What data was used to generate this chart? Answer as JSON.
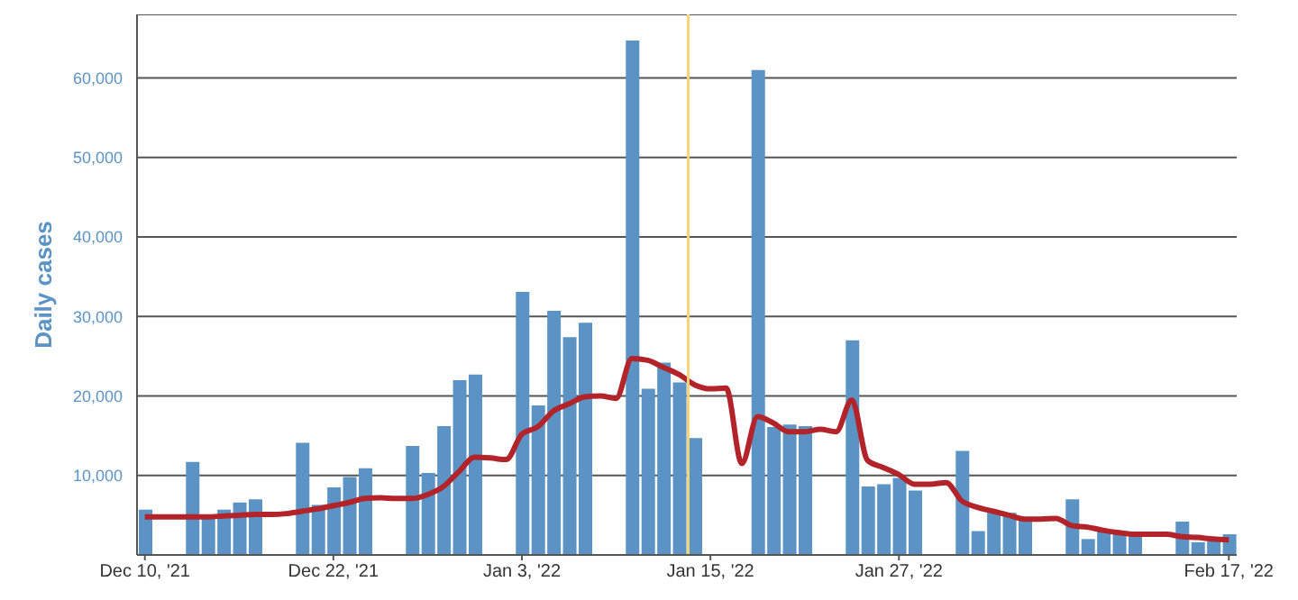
{
  "chart_data": {
    "type": "bar",
    "ylabel": "Daily cases",
    "x": [
      "2021-12-10",
      "2021-12-11",
      "2021-12-12",
      "2021-12-13",
      "2021-12-14",
      "2021-12-15",
      "2021-12-16",
      "2021-12-17",
      "2021-12-18",
      "2021-12-19",
      "2021-12-20",
      "2021-12-21",
      "2021-12-22",
      "2021-12-23",
      "2021-12-24",
      "2021-12-25",
      "2021-12-26",
      "2021-12-27",
      "2021-12-28",
      "2021-12-29",
      "2021-12-30",
      "2021-12-31",
      "2022-01-01",
      "2022-01-02",
      "2022-01-03",
      "2022-01-04",
      "2022-01-05",
      "2022-01-06",
      "2022-01-07",
      "2022-01-08",
      "2022-01-09",
      "2022-01-10",
      "2022-01-11",
      "2022-01-12",
      "2022-01-13",
      "2022-01-14",
      "2022-01-15",
      "2022-01-16",
      "2022-01-17",
      "2022-01-18",
      "2022-01-19",
      "2022-01-20",
      "2022-01-21",
      "2022-01-22",
      "2022-01-23",
      "2022-01-24",
      "2022-01-25",
      "2022-01-26",
      "2022-01-27",
      "2022-01-28",
      "2022-01-29",
      "2022-01-30",
      "2022-01-31",
      "2022-02-01",
      "2022-02-02",
      "2022-02-03",
      "2022-02-04",
      "2022-02-05",
      "2022-02-06",
      "2022-02-07",
      "2022-02-08",
      "2022-02-09",
      "2022-02-10",
      "2022-02-11",
      "2022-02-12",
      "2022-02-13",
      "2022-02-14",
      "2022-02-15",
      "2022-02-16",
      "2022-02-17"
    ],
    "series": [
      {
        "color": "#5b93c5",
        "values": [
          5700,
          null,
          null,
          11700,
          5000,
          5700,
          6600,
          7000,
          null,
          null,
          14100,
          6300,
          8500,
          9800,
          10900,
          null,
          null,
          13700,
          10300,
          16200,
          22000,
          22700,
          null,
          null,
          33100,
          18800,
          30700,
          27400,
          29200,
          null,
          null,
          64700,
          20900,
          24200,
          21700,
          14700,
          null,
          null,
          null,
          61000,
          16100,
          16400,
          16200,
          null,
          null,
          27000,
          8600,
          8900,
          9700,
          8100,
          null,
          null,
          13100,
          3000,
          5500,
          5300,
          4600,
          null,
          null,
          7000,
          2000,
          3100,
          2900,
          2600,
          null,
          null,
          4200,
          1600,
          1700,
          2600
        ]
      },
      {
        "type": "line",
        "color": "#b3232a",
        "values": [
          4800,
          4800,
          4800,
          4800,
          4800,
          4900,
          5000,
          5100,
          5100,
          5200,
          5500,
          5800,
          6200,
          6600,
          7100,
          7200,
          7100,
          7100,
          7600,
          8600,
          10500,
          12300,
          12200,
          12000,
          15200,
          16100,
          18100,
          19000,
          19900,
          20000,
          19700,
          24700,
          24500,
          23600,
          22700,
          21400,
          20900,
          21000,
          11500,
          17400,
          16600,
          15500,
          15500,
          15800,
          15500,
          19500,
          11900,
          11000,
          10100,
          8900,
          8900,
          9100,
          6800,
          6000,
          5500,
          5000,
          4500,
          4500,
          4600,
          3700,
          3500,
          3100,
          2800,
          2600,
          2600,
          2600,
          2300,
          2200,
          2000,
          1900
        ]
      }
    ],
    "xlim": [
      "2021-12-09T12:00",
      "2022-02-17T12:00"
    ],
    "xticks": [
      {
        "value": "2021-12-10",
        "label": "Dec 10, '21"
      },
      {
        "value": "2021-12-22",
        "label": "Dec 22, '21"
      },
      {
        "value": "2022-01-03",
        "label": "Jan 3, '22"
      },
      {
        "value": "2022-01-15",
        "label": "Jan 15, '22"
      },
      {
        "value": "2022-01-27",
        "label": "Jan 27, '22"
      },
      {
        "value": "2022-02-17",
        "label": "Feb 17, '22"
      }
    ],
    "ylim": [
      0,
      68000
    ],
    "yticks": [
      {
        "value": 10000,
        "label": "10,000"
      },
      {
        "value": 20000,
        "label": "20,000"
      },
      {
        "value": 30000,
        "label": "30,000"
      },
      {
        "value": 40000,
        "label": "40,000"
      },
      {
        "value": 50000,
        "label": "50,000"
      },
      {
        "value": 60000,
        "label": "60,000"
      }
    ],
    "ref_lines": [
      {
        "axis": "x",
        "value": "2022-01-13T14:00",
        "label": null,
        "color": "#f5d47a"
      }
    ],
    "grid": "y",
    "legend": false,
    "marker": "none",
    "line_style": "solid"
  }
}
